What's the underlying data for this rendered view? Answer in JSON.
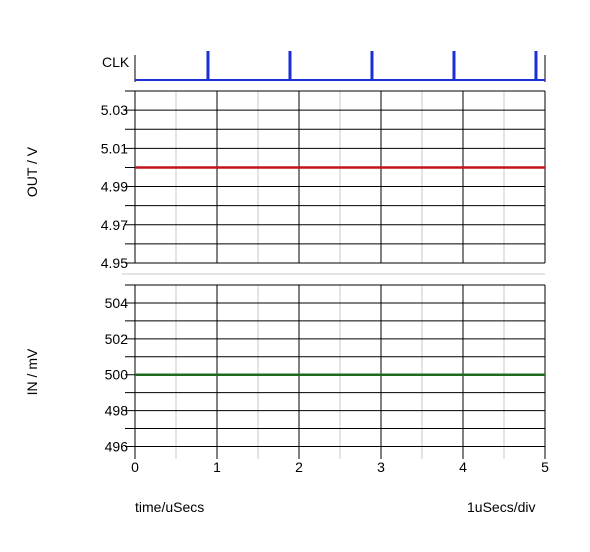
{
  "chart_data": [
    {
      "type": "line",
      "title": "",
      "ylabel": "CLK",
      "xlim": [
        0,
        5
      ],
      "series": [
        {
          "name": "CLK",
          "color": "#1a2fd6",
          "pulses_x": [
            0.89,
            1.89,
            2.89,
            3.89,
            4.89
          ]
        }
      ]
    },
    {
      "type": "line",
      "ylabel": "OUT / V",
      "xlim": [
        0,
        5
      ],
      "ylim": [
        4.95,
        5.04
      ],
      "yticks": [
        5.03,
        5.01,
        4.99,
        4.97,
        4.95
      ],
      "grid": true,
      "series": [
        {
          "color": "#c0141e",
          "x": [
            0,
            5
          ],
          "y": [
            5.0,
            5.0
          ]
        }
      ]
    },
    {
      "type": "line",
      "ylabel": "IN / mV",
      "xlim": [
        0,
        5
      ],
      "ylim": [
        495.3,
        505
      ],
      "yticks": [
        504,
        502,
        500,
        498,
        496
      ],
      "grid": true,
      "series": [
        {
          "color": "#1e6b1e",
          "x": [
            0,
            5
          ],
          "y": [
            500,
            500
          ]
        }
      ]
    }
  ],
  "x_axis": {
    "ticks": [
      "0",
      "1",
      "2",
      "3",
      "4",
      "5"
    ],
    "xlabel": "time/uSecs",
    "scale_label": "1uSecs/div"
  }
}
